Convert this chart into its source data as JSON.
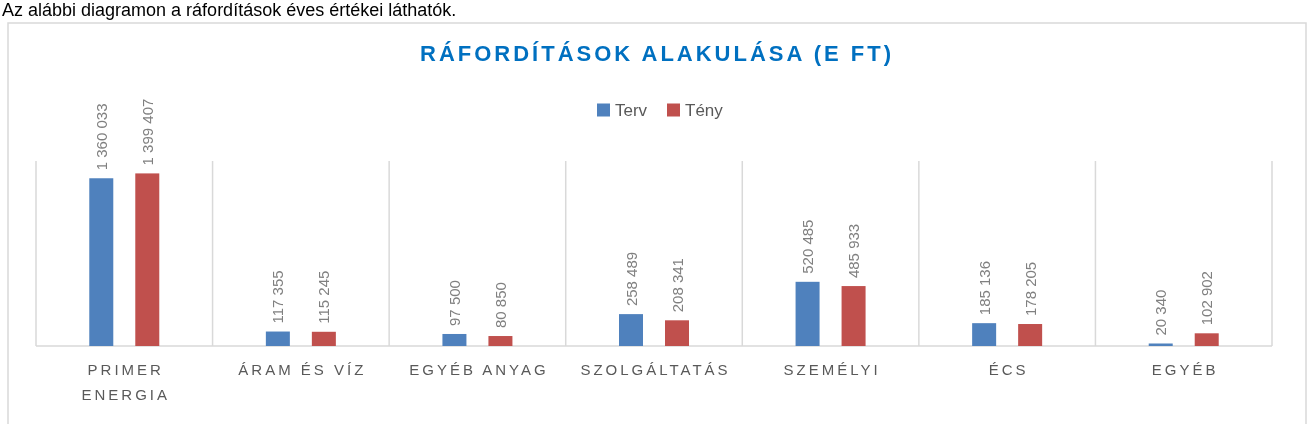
{
  "chart_data": {
    "type": "bar",
    "title": "RÁFORDÍTÁSOK ALAKULÁSA (E FT)",
    "annotations": [
      "Az alábbi diagramon a ráfordítások éves értékei láthatók."
    ],
    "categories": [
      "PRIMER ENERGIA",
      "ÁRAM ÉS VÍZ",
      "EGYÉB ANYAG",
      "SZOLGÁLTATÁS",
      "SZEMÉLYI",
      "ÉCS",
      "EGYÉB"
    ],
    "series": [
      {
        "name": "Terv",
        "color": "#4f81bd",
        "values": [
          1360033,
          117355,
          97500,
          258489,
          520485,
          185136,
          20340
        ]
      },
      {
        "name": "Tény",
        "color": "#c0504d",
        "values": [
          1399407,
          115245,
          80850,
          208341,
          485933,
          178205,
          102902
        ]
      }
    ],
    "ylim": [
      0,
      1500000
    ],
    "data_labels": true,
    "legend": "top",
    "grid": "x",
    "tick_labels": "x"
  }
}
